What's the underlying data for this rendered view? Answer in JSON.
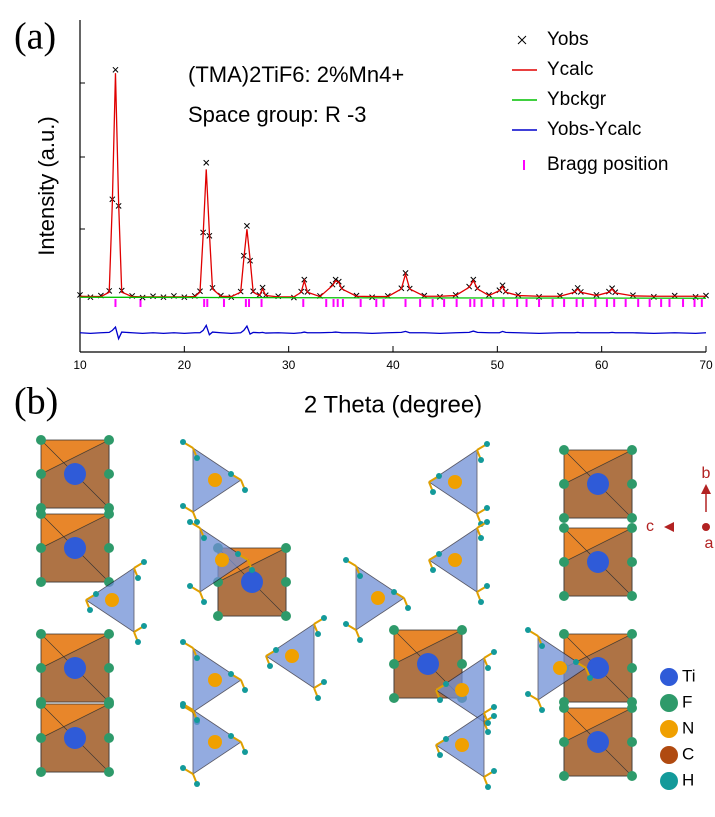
{
  "panels": {
    "a": "(a)",
    "b": "(b)"
  },
  "chart_data": {
    "type": "line",
    "annotations": [
      "(TMA)2TiF6: 2%Mn4+",
      "Space group: R -3"
    ],
    "x_label": "2 Theta (degree)",
    "y_label": "Intensity (a.u.)",
    "xlim": [
      10,
      70
    ],
    "xticks": [
      10,
      20,
      30,
      40,
      50,
      60,
      70
    ],
    "ylim": [
      0,
      100
    ],
    "legend": "upper right",
    "x": [
      10,
      11,
      12,
      12.8,
      13.1,
      13.4,
      13.7,
      14.0,
      15,
      16,
      17,
      18,
      19,
      20,
      21,
      21.5,
      21.8,
      22.1,
      22.4,
      22.7,
      23.5,
      24.5,
      25.4,
      25.7,
      26.0,
      26.3,
      26.6,
      27.2,
      27.5,
      27.8,
      29,
      30.5,
      31.2,
      31.5,
      31.8,
      33,
      34.2,
      34.5,
      34.8,
      35.1,
      36.5,
      38,
      39.5,
      40.8,
      41.2,
      41.6,
      43,
      44.5,
      46,
      47.3,
      47.7,
      48.1,
      49.2,
      50.2,
      50.5,
      50.8,
      52,
      54,
      56,
      57.4,
      57.7,
      58,
      59.5,
      60.7,
      61,
      61.3,
      63,
      65,
      67,
      69,
      70
    ],
    "series": [
      {
        "name": "Yobs",
        "color": "#000000",
        "marker": "x",
        "values": [
          17.2,
          16.5,
          17.0,
          18.4,
          46,
          85,
          44,
          18.5,
          16.9,
          16.4,
          16.8,
          16.5,
          16.9,
          16.5,
          16.9,
          18.3,
          36,
          57,
          35,
          19.3,
          17.0,
          16.5,
          18.2,
          29,
          38,
          27.5,
          18.3,
          17.2,
          19.4,
          17.1,
          16.8,
          16.4,
          18.2,
          21.8,
          18.1,
          16.9,
          20.3,
          21.8,
          21.2,
          19.2,
          17.0,
          16.5,
          16.9,
          19.2,
          23.8,
          19.1,
          17.0,
          16.6,
          17.2,
          19.7,
          21.8,
          19.2,
          17.2,
          18.6,
          20.1,
          18.2,
          17.2,
          16.6,
          17.0,
          18.2,
          19.3,
          18.1,
          17.2,
          18.2,
          19.2,
          18.0,
          17.1,
          16.6,
          17.0,
          16.6,
          17.0
        ]
      },
      {
        "name": "Ycalc",
        "color": "#e00000",
        "values": [
          16.8,
          16.7,
          16.7,
          18,
          45,
          84,
          45,
          18,
          16.7,
          16.6,
          16.6,
          16.6,
          16.6,
          16.6,
          16.7,
          18,
          35,
          55,
          36,
          19,
          16.8,
          16.7,
          18,
          28,
          37,
          28,
          18,
          17,
          19,
          17,
          16.6,
          16.6,
          18,
          21.5,
          18,
          16.7,
          20,
          21.5,
          21,
          19,
          16.8,
          16.7,
          16.7,
          19,
          23.5,
          19,
          16.8,
          16.8,
          17,
          19.5,
          21.5,
          19,
          17,
          18.5,
          19.8,
          18,
          17,
          16.8,
          16.8,
          18,
          19,
          18,
          17,
          18,
          19,
          17.8,
          16.9,
          16.8,
          16.8,
          16.8,
          16.8
        ]
      },
      {
        "name": "Ybckgr",
        "color": "#00c000",
        "x": [
          10,
          40,
          70
        ],
        "values": [
          16.5,
          16.3,
          16.2
        ]
      },
      {
        "name": "Yobs-Ycalc",
        "color": "#0000cc",
        "values": [
          5.8,
          5.6,
          5.8,
          5.9,
          6.5,
          7.5,
          4.0,
          6.0,
          5.8,
          5.6,
          5.8,
          5.6,
          5.8,
          5.6,
          5.8,
          5.8,
          6.5,
          8.0,
          5.2,
          6.0,
          5.8,
          5.6,
          5.8,
          6.5,
          7.8,
          5.4,
          5.9,
          5.8,
          5.9,
          5.7,
          5.8,
          5.6,
          5.8,
          6.0,
          5.8,
          5.8,
          5.9,
          6.0,
          5.9,
          5.8,
          5.8,
          5.6,
          5.8,
          5.9,
          6.2,
          5.8,
          5.8,
          5.6,
          5.8,
          5.9,
          6.3,
          5.9,
          5.8,
          5.8,
          6.2,
          5.9,
          5.8,
          5.6,
          5.8,
          5.8,
          5.9,
          5.8,
          5.8,
          5.8,
          5.9,
          5.8,
          5.8,
          5.6,
          5.8,
          5.6,
          5.8
        ]
      }
    ],
    "bragg": {
      "name": "Bragg position",
      "color": "#ff00ff",
      "x": [
        13.4,
        15.8,
        21.9,
        22.2,
        23.8,
        25.9,
        26.2,
        27.4,
        31.4,
        33.6,
        34.3,
        34.7,
        35.2,
        36.9,
        38.4,
        39.1,
        41.2,
        42.6,
        43.8,
        44.9,
        46.1,
        47.4,
        47.8,
        48.5,
        49.6,
        50.6,
        51.9,
        52.8,
        54.0,
        55.3,
        56.4,
        57.6,
        58.2,
        59.4,
        60.5,
        61.2,
        62.3,
        63.5,
        64.6,
        65.7,
        66.5,
        67.8,
        68.9,
        69.6
      ]
    }
  },
  "structure": {
    "axes": {
      "b": "b",
      "c": "c",
      "a": "a"
    },
    "legend": [
      {
        "label": "Ti",
        "color": "#2f5bd8"
      },
      {
        "label": "F",
        "color": "#2e9a6a"
      },
      {
        "label": "N",
        "color": "#f0a000"
      },
      {
        "label": "C",
        "color": "#b04a10"
      },
      {
        "label": "H",
        "color": "#139a9a"
      }
    ]
  }
}
